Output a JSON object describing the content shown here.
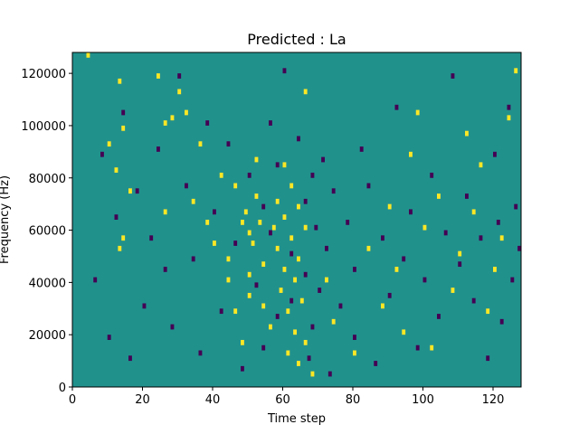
{
  "chart_data": {
    "type": "heatmap",
    "title": "Predicted : La",
    "xlabel": "Time step",
    "ylabel": "Frequency (Hz)",
    "xlim": [
      0,
      128
    ],
    "ylim": [
      0,
      128000
    ],
    "x_ticks": [
      0,
      20,
      40,
      60,
      80,
      100,
      120
    ],
    "y_ticks": [
      0,
      20000,
      40000,
      60000,
      80000,
      100000,
      120000
    ],
    "x_tick_labels": [
      "0",
      "20",
      "40",
      "60",
      "80",
      "100",
      "120"
    ],
    "y_tick_labels": [
      "0",
      "20000",
      "40000",
      "60000",
      "80000",
      "100000",
      "120000"
    ],
    "grid": false,
    "colormap": "viridis-3",
    "colors": {
      "background": "#21918c",
      "high": "#fde725",
      "low": "#440154"
    },
    "cell_height_hz": 2000,
    "cells_high": [
      [
        4,
        126000
      ],
      [
        10,
        92000
      ],
      [
        12,
        82000
      ],
      [
        13,
        116000
      ],
      [
        13,
        52000
      ],
      [
        14,
        98000
      ],
      [
        14,
        56000
      ],
      [
        16,
        74000
      ],
      [
        24,
        118000
      ],
      [
        26,
        100000
      ],
      [
        26,
        66000
      ],
      [
        28,
        102000
      ],
      [
        30,
        112000
      ],
      [
        32,
        104000
      ],
      [
        34,
        70000
      ],
      [
        36,
        92000
      ],
      [
        38,
        62000
      ],
      [
        40,
        54000
      ],
      [
        42,
        80000
      ],
      [
        44,
        48000
      ],
      [
        44,
        40000
      ],
      [
        46,
        76000
      ],
      [
        46,
        28000
      ],
      [
        48,
        62000
      ],
      [
        48,
        16000
      ],
      [
        49,
        66000
      ],
      [
        50,
        58000
      ],
      [
        50,
        42000
      ],
      [
        50,
        34000
      ],
      [
        51,
        54000
      ],
      [
        52,
        86000
      ],
      [
        52,
        72000
      ],
      [
        53,
        62000
      ],
      [
        54,
        46000
      ],
      [
        54,
        30000
      ],
      [
        56,
        22000
      ],
      [
        57,
        60000
      ],
      [
        58,
        70000
      ],
      [
        58,
        52000
      ],
      [
        59,
        36000
      ],
      [
        60,
        84000
      ],
      [
        60,
        64000
      ],
      [
        60,
        44000
      ],
      [
        61,
        28000
      ],
      [
        61,
        12000
      ],
      [
        62,
        76000
      ],
      [
        62,
        56000
      ],
      [
        63,
        40000
      ],
      [
        63,
        20000
      ],
      [
        64,
        68000
      ],
      [
        64,
        48000
      ],
      [
        64,
        8000
      ],
      [
        65,
        32000
      ],
      [
        66,
        112000
      ],
      [
        66,
        60000
      ],
      [
        66,
        16000
      ],
      [
        68,
        4000
      ],
      [
        72,
        40000
      ],
      [
        74,
        24000
      ],
      [
        80,
        12000
      ],
      [
        84,
        52000
      ],
      [
        88,
        30000
      ],
      [
        90,
        68000
      ],
      [
        92,
        44000
      ],
      [
        94,
        20000
      ],
      [
        96,
        88000
      ],
      [
        98,
        104000
      ],
      [
        100,
        60000
      ],
      [
        102,
        14000
      ],
      [
        104,
        72000
      ],
      [
        108,
        36000
      ],
      [
        110,
        50000
      ],
      [
        112,
        96000
      ],
      [
        114,
        66000
      ],
      [
        116,
        84000
      ],
      [
        118,
        28000
      ],
      [
        120,
        44000
      ],
      [
        122,
        56000
      ],
      [
        124,
        102000
      ],
      [
        126,
        120000
      ]
    ],
    "cells_low": [
      [
        6,
        40000
      ],
      [
        8,
        88000
      ],
      [
        10,
        18000
      ],
      [
        12,
        64000
      ],
      [
        14,
        104000
      ],
      [
        16,
        10000
      ],
      [
        18,
        74000
      ],
      [
        20,
        30000
      ],
      [
        22,
        56000
      ],
      [
        24,
        90000
      ],
      [
        26,
        44000
      ],
      [
        28,
        22000
      ],
      [
        30,
        118000
      ],
      [
        32,
        76000
      ],
      [
        34,
        48000
      ],
      [
        36,
        12000
      ],
      [
        38,
        100000
      ],
      [
        40,
        66000
      ],
      [
        42,
        28000
      ],
      [
        44,
        92000
      ],
      [
        46,
        54000
      ],
      [
        48,
        6000
      ],
      [
        50,
        80000
      ],
      [
        52,
        38000
      ],
      [
        54,
        68000
      ],
      [
        54,
        14000
      ],
      [
        56,
        100000
      ],
      [
        56,
        58000
      ],
      [
        58,
        84000
      ],
      [
        58,
        26000
      ],
      [
        60,
        120000
      ],
      [
        62,
        50000
      ],
      [
        62,
        32000
      ],
      [
        64,
        94000
      ],
      [
        66,
        70000
      ],
      [
        66,
        42000
      ],
      [
        67,
        10000
      ],
      [
        68,
        80000
      ],
      [
        68,
        22000
      ],
      [
        69,
        60000
      ],
      [
        70,
        36000
      ],
      [
        71,
        86000
      ],
      [
        72,
        52000
      ],
      [
        73,
        4000
      ],
      [
        74,
        74000
      ],
      [
        76,
        30000
      ],
      [
        78,
        62000
      ],
      [
        80,
        44000
      ],
      [
        80,
        18000
      ],
      [
        82,
        90000
      ],
      [
        84,
        76000
      ],
      [
        86,
        8000
      ],
      [
        88,
        56000
      ],
      [
        90,
        34000
      ],
      [
        92,
        106000
      ],
      [
        94,
        48000
      ],
      [
        96,
        66000
      ],
      [
        98,
        14000
      ],
      [
        100,
        40000
      ],
      [
        102,
        80000
      ],
      [
        104,
        26000
      ],
      [
        106,
        58000
      ],
      [
        108,
        118000
      ],
      [
        110,
        46000
      ],
      [
        112,
        72000
      ],
      [
        114,
        32000
      ],
      [
        116,
        56000
      ],
      [
        118,
        10000
      ],
      [
        120,
        88000
      ],
      [
        121,
        62000
      ],
      [
        122,
        24000
      ],
      [
        124,
        106000
      ],
      [
        125,
        40000
      ],
      [
        126,
        68000
      ],
      [
        127,
        52000
      ]
    ]
  }
}
